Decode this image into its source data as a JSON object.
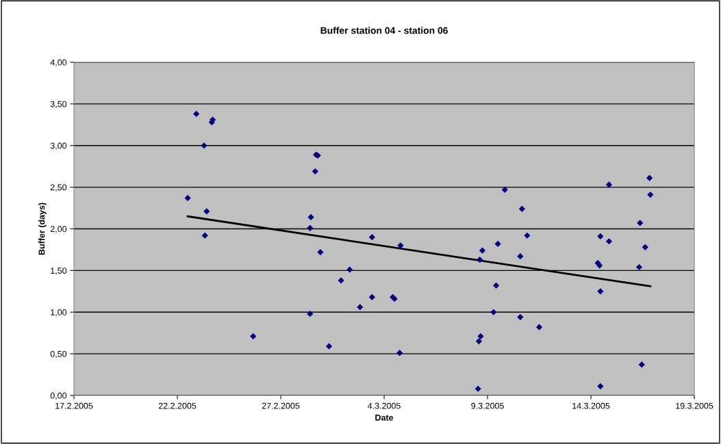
{
  "chart_data": {
    "type": "scatter",
    "title": "Buffer station 04 - station 06",
    "xlabel": "Date",
    "ylabel": "Buffer (days)",
    "grid": "y",
    "legend": false,
    "marker": "diamond",
    "xlim": [
      "2005-02-17",
      "2005-03-19"
    ],
    "xticks": [
      {
        "value": "2005-02-17",
        "label": "17.2.2005"
      },
      {
        "value": "2005-02-22",
        "label": "22.2.2005"
      },
      {
        "value": "2005-02-27",
        "label": "27.2.2005"
      },
      {
        "value": "2005-03-04",
        "label": "4.3.2005"
      },
      {
        "value": "2005-03-09",
        "label": "9.3.2005"
      },
      {
        "value": "2005-03-14",
        "label": "14.3.2005"
      },
      {
        "value": "2005-03-19",
        "label": "19.3.2005"
      }
    ],
    "ylim": [
      0,
      4
    ],
    "yticks": [
      {
        "value": 0,
        "label": "0,00"
      },
      {
        "value": 0.5,
        "label": "0,50"
      },
      {
        "value": 1,
        "label": "1,00"
      },
      {
        "value": 1.5,
        "label": "1,50"
      },
      {
        "value": 2,
        "label": "2,00"
      },
      {
        "value": 2.5,
        "label": "2,50"
      },
      {
        "value": 3,
        "label": "3,00"
      },
      {
        "value": 3.5,
        "label": "3,50"
      },
      {
        "value": 4,
        "label": "4,00"
      }
    ],
    "series": [
      {
        "color": "#000080",
        "x": [
          "2005-02-22T12:00",
          "2005-02-22T22:00",
          "2005-02-23T07:00",
          "2005-02-23T08:00",
          "2005-02-23T10:00",
          "2005-02-23T16:00",
          "2005-02-23T17:00",
          "2005-02-25T16:00",
          "2005-02-28T10:00",
          "2005-02-28T10:00",
          "2005-02-28T11:00",
          "2005-02-28T16:00",
          "2005-02-28T17:00",
          "2005-02-28T19:00",
          "2005-02-28T22:00",
          "2005-03-01T08:00",
          "2005-03-01T22:00",
          "2005-03-02T08:00",
          "2005-03-02T20:00",
          "2005-03-03T10:00",
          "2005-03-03T10:00",
          "2005-03-04T10:00",
          "2005-03-04T12:00",
          "2005-03-04T18:00",
          "2005-03-04T19:00",
          "2005-03-08T13:00",
          "2005-03-08T14:00",
          "2005-03-08T15:00",
          "2005-03-08T16:00",
          "2005-03-08T18:00",
          "2005-03-09T07:00",
          "2005-03-09T10:00",
          "2005-03-09T12:00",
          "2005-03-09T20:00",
          "2005-03-10T14:00",
          "2005-03-10T14:00",
          "2005-03-10T16:00",
          "2005-03-10T22:00",
          "2005-03-11T12:00",
          "2005-03-14T08:00",
          "2005-03-14T10:00",
          "2005-03-14T11:00",
          "2005-03-14T11:00",
          "2005-03-14T11:00",
          "2005-03-14T21:00",
          "2005-03-14T21:00",
          "2005-03-16T08:00",
          "2005-03-16T09:00",
          "2005-03-16T11:00",
          "2005-03-16T15:00",
          "2005-03-16T20:00",
          "2005-03-16T21:00"
        ],
        "values": [
          2.37,
          3.38,
          3.0,
          1.92,
          2.21,
          3.28,
          3.31,
          0.71,
          0.98,
          2.01,
          2.14,
          2.69,
          2.89,
          2.88,
          1.72,
          0.59,
          1.38,
          1.51,
          1.06,
          1.9,
          1.18,
          1.18,
          1.16,
          0.51,
          1.8,
          0.08,
          0.65,
          1.63,
          0.71,
          1.74,
          1.0,
          1.32,
          1.82,
          2.47,
          0.94,
          1.67,
          2.24,
          1.92,
          0.82,
          1.59,
          1.56,
          0.11,
          1.91,
          1.25,
          2.53,
          1.85,
          1.54,
          2.07,
          0.37,
          1.78,
          2.61,
          2.41
        ]
      },
      {
        "type": "line",
        "color": "#000000",
        "marker": "none",
        "line_style": "solid",
        "x": [
          "2005-02-22T12:00",
          "2005-03-16T21:00"
        ],
        "values": [
          2.15,
          1.31
        ]
      }
    ]
  }
}
